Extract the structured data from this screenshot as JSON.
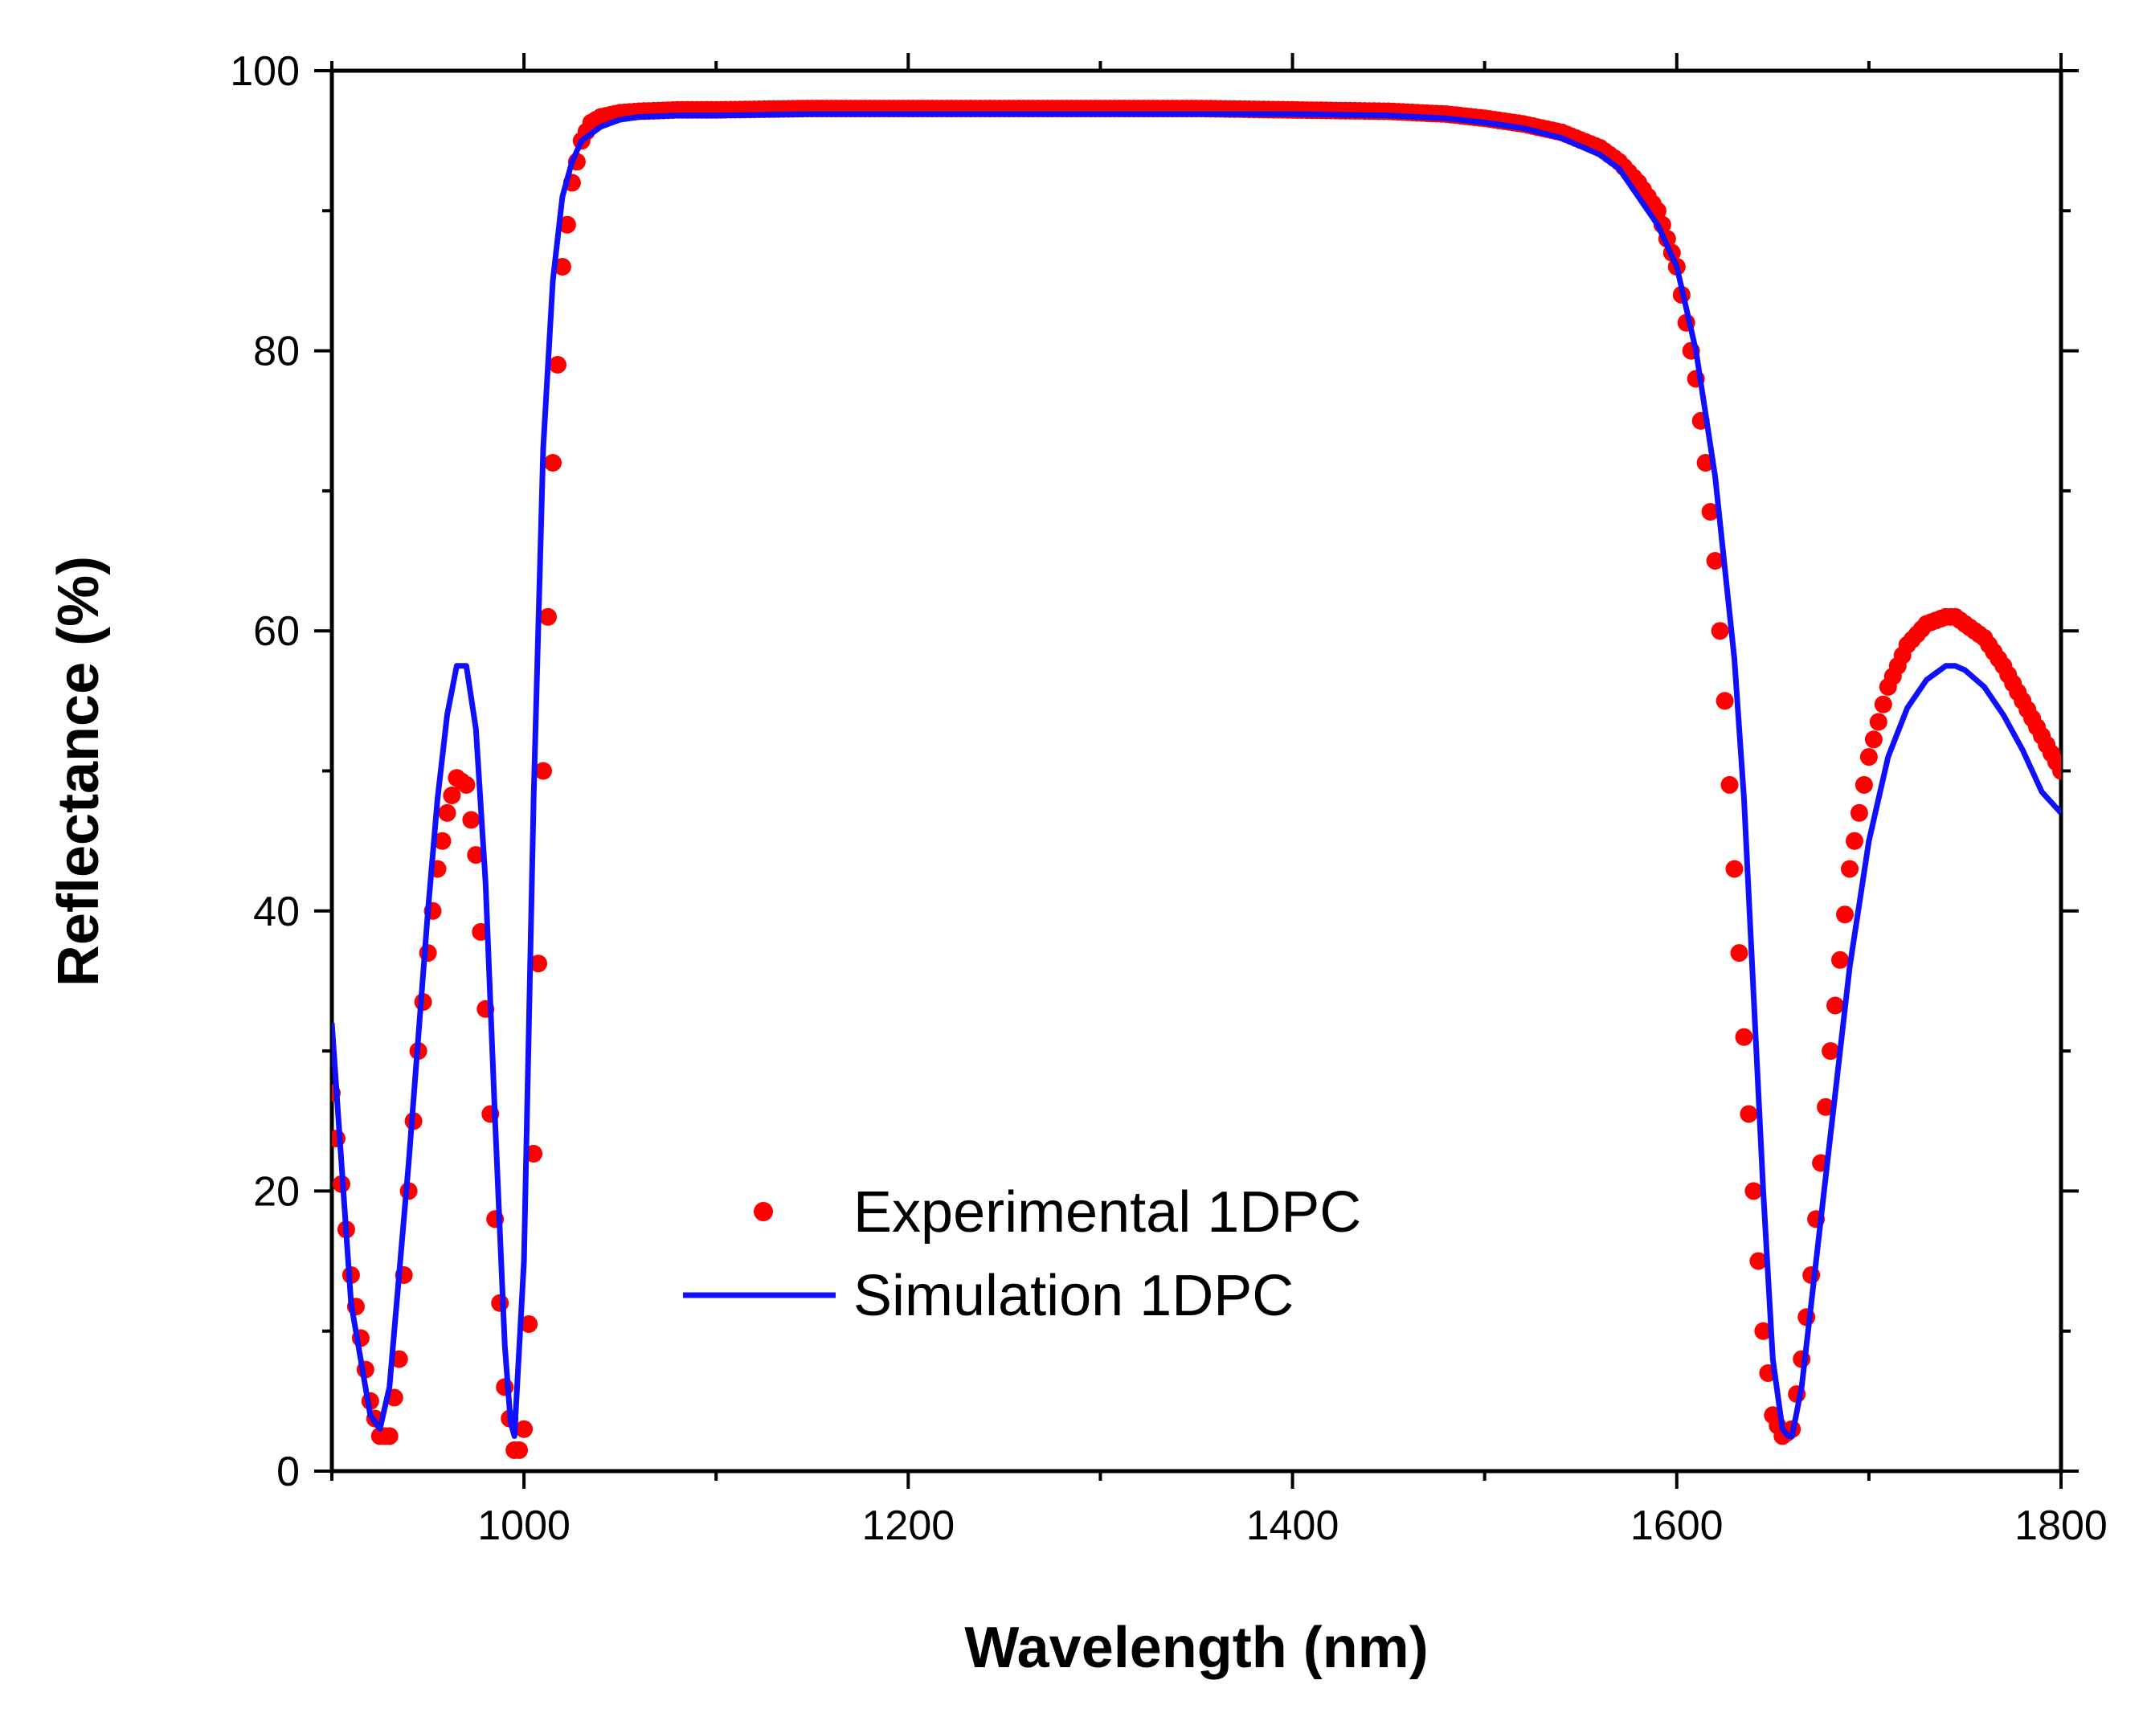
{
  "chart_data": {
    "type": "scatter",
    "title": "",
    "xlabel": "Wavelength (nm)",
    "ylabel": "Reflectance (%)",
    "xlim": [
      900,
      1800
    ],
    "ylim": [
      0,
      100
    ],
    "xticks": [
      1000,
      1200,
      1400,
      1600,
      1800
    ],
    "yticks": [
      0,
      20,
      40,
      60,
      80,
      100
    ],
    "xminor_step": 100,
    "yminor_step": 10,
    "grid": false,
    "legend_position": "lower-center",
    "series": [
      {
        "name": "Experimental 1DPC",
        "style": "markers",
        "color": "#ff0000",
        "x": [
          900,
          910,
          920,
          925,
          930,
          935,
          940,
          945,
          950,
          955,
          960,
          965,
          970,
          975,
          980,
          985,
          990,
          995,
          998,
          1000,
          1003,
          1006,
          1010,
          1015,
          1020,
          1025,
          1030,
          1035,
          1040,
          1050,
          1060,
          1080,
          1100,
          1150,
          1200,
          1250,
          1300,
          1350,
          1400,
          1450,
          1480,
          1500,
          1520,
          1540,
          1560,
          1570,
          1580,
          1590,
          1600,
          1605,
          1610,
          1615,
          1620,
          1625,
          1630,
          1635,
          1640,
          1645,
          1650,
          1655,
          1660,
          1665,
          1670,
          1675,
          1680,
          1690,
          1700,
          1710,
          1720,
          1730,
          1740,
          1745,
          1750,
          1760,
          1770,
          1780,
          1790,
          1800
        ],
        "y": [
          27,
          14,
          5,
          2.5,
          2.5,
          8,
          20,
          30,
          37,
          43,
          47,
          49.5,
          49,
          44,
          33,
          18,
          6,
          1.5,
          1.5,
          3,
          12,
          28,
          50,
          72,
          86,
          92,
          95,
          96.3,
          96.7,
          97,
          97.1,
          97.2,
          97.2,
          97.3,
          97.3,
          97.3,
          97.3,
          97.3,
          97.2,
          97.1,
          96.9,
          96.6,
          96.2,
          95.6,
          94.5,
          93.5,
          92,
          90,
          86,
          82,
          78,
          72,
          65,
          55,
          43,
          31,
          20,
          10,
          4,
          2.5,
          3,
          8,
          14,
          22,
          30,
          43,
          51,
          56,
          59,
          60.5,
          61,
          61,
          60.5,
          59.5,
          57.5,
          55,
          52.5,
          50
        ]
      },
      {
        "name": "Simulation 1DPC",
        "style": "line",
        "color": "#1010ff",
        "x": [
          900,
          910,
          920,
          925,
          930,
          940,
          950,
          955,
          960,
          965,
          970,
          975,
          980,
          985,
          990,
          993,
          995,
          1000,
          1005,
          1010,
          1015,
          1020,
          1025,
          1030,
          1040,
          1050,
          1060,
          1080,
          1100,
          1150,
          1200,
          1250,
          1300,
          1350,
          1400,
          1450,
          1480,
          1500,
          1520,
          1540,
          1560,
          1570,
          1580,
          1590,
          1600,
          1610,
          1620,
          1630,
          1635,
          1640,
          1645,
          1650,
          1655,
          1658,
          1660,
          1665,
          1670,
          1680,
          1690,
          1700,
          1710,
          1720,
          1730,
          1740,
          1745,
          1750,
          1760,
          1770,
          1780,
          1790,
          1800
        ],
        "y": [
          32,
          12,
          4,
          3,
          6,
          22,
          40,
          48,
          54,
          57.5,
          57.5,
          53,
          42,
          25,
          9,
          3.5,
          2.5,
          15,
          48,
          73,
          85,
          91,
          93.5,
          95,
          96,
          96.5,
          96.7,
          96.8,
          96.8,
          96.9,
          96.9,
          96.9,
          96.9,
          96.9,
          96.9,
          96.8,
          96.6,
          96.3,
          95.9,
          95.2,
          94,
          93,
          91,
          89,
          86,
          80,
          71,
          58,
          48,
          34,
          20,
          8,
          3,
          2.5,
          2.5,
          6,
          12,
          24,
          36,
          45,
          51,
          54.5,
          56.5,
          57.5,
          57.5,
          57.2,
          56,
          54,
          51.5,
          48.5,
          47
        ]
      }
    ]
  }
}
